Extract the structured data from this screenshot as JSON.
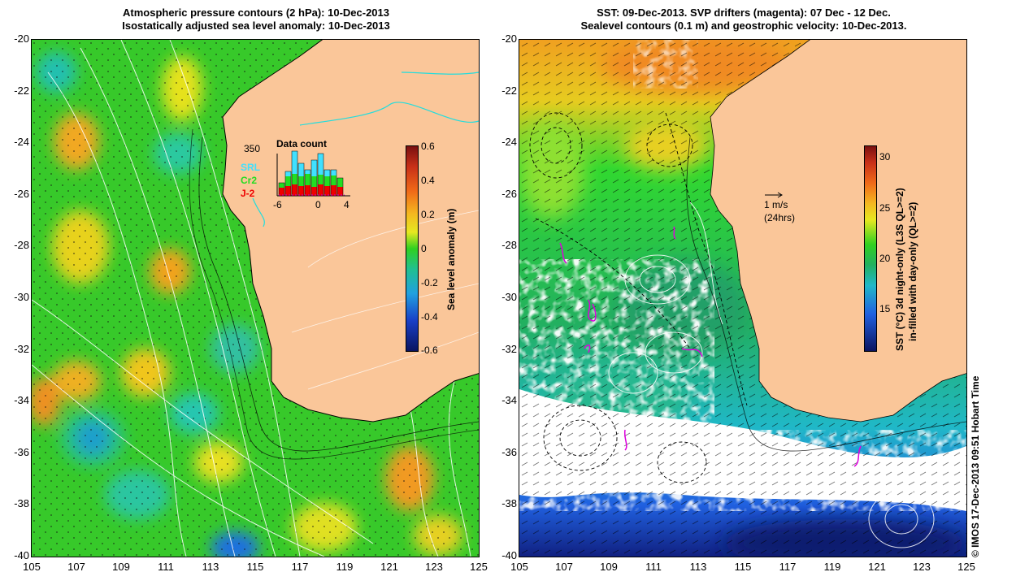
{
  "left_panel": {
    "title_line1": "Atmospheric pressure contours (2 hPa): 10-Dec-2013",
    "title_line2": "Isostatically adjusted sea level anomaly: 10-Dec-2013",
    "colorbar": {
      "label": "Sea level anomaly (m)",
      "ticks": [
        "0.6",
        "0.4",
        "0.2",
        "0",
        "-0.2",
        "-0.4",
        "-0.6"
      ]
    },
    "inset": {
      "title": "Data count",
      "max_label": "350",
      "legend": [
        {
          "name": "SRL",
          "color": "#40e0ff"
        },
        {
          "name": "Cr2",
          "color": "#22dd22"
        },
        {
          "name": "J-2",
          "color": "#ee0000"
        }
      ],
      "x_ticks": [
        "-6",
        "0",
        "4"
      ]
    }
  },
  "right_panel": {
    "title_line1": "SST: 09-Dec-2013. SVP drifters (magenta): 07 Dec - 12 Dec.",
    "title_line2": "Sealevel contours (0.1 m) and geostrophic velocity: 10-Dec-2013.",
    "scale_arrow_line1": "1 m/s",
    "scale_arrow_line2": "(24hrs)",
    "colorbar": {
      "label_line1": "SST (°C)  3d night-only (L3S QL>=2)",
      "label_line2": "in-filled with day-only (QL>=2)",
      "ticks": [
        "30",
        "25",
        "20",
        "15"
      ]
    }
  },
  "axes": {
    "y_ticks": [
      "-20",
      "-22",
      "-24",
      "-26",
      "-28",
      "-30",
      "-32",
      "-34",
      "-36",
      "-38",
      "-40"
    ],
    "x_ticks": [
      "105",
      "107",
      "109",
      "111",
      "113",
      "115",
      "117",
      "119",
      "121",
      "123",
      "125"
    ],
    "lon_range": [
      105,
      125
    ],
    "lat_range": [
      -40,
      -20
    ]
  },
  "credit": "© IMOS 17-Dec-2013 09:51 Hobart Time",
  "colors": {
    "land": "#fac699",
    "ocean_green": "#33cc22",
    "contour": "#ffffff",
    "drifter": "#dd00dd",
    "coast_cyan": "#22dddd"
  }
}
